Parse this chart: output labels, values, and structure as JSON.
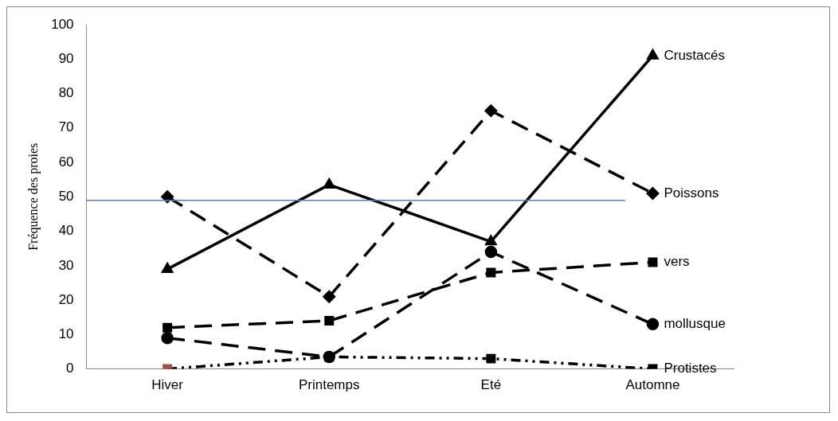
{
  "chart_data": {
    "type": "line",
    "ylabel": "Fréquence des proies",
    "categories": [
      "Hiver",
      "Printemps",
      "Eté",
      "Automne"
    ],
    "ylim": [
      0,
      100
    ],
    "yticks": [
      0,
      10,
      20,
      30,
      40,
      50,
      60,
      70,
      80,
      90,
      100
    ],
    "grid": false,
    "legend": "right",
    "series": [
      {
        "name": "Crustacés",
        "color": "#000000",
        "marker": "triangle",
        "line_style": "solid",
        "values": [
          29,
          53.5,
          37,
          91
        ]
      },
      {
        "name": "Poissons",
        "color": "#000000",
        "marker": "diamond",
        "line_style": "dashed",
        "values": [
          50,
          21,
          75,
          51
        ]
      },
      {
        "name": "vers",
        "color": "#000000",
        "marker": "square",
        "line_style": "dashed",
        "values": [
          12,
          14,
          28,
          31
        ]
      },
      {
        "name": "mollusque",
        "color": "#000000",
        "marker": "circle",
        "line_style": "dashed",
        "values": [
          9,
          3.5,
          34,
          13
        ]
      },
      {
        "name": "Protistes",
        "color": "#000000",
        "colors": [
          "#a05050",
          "#000000",
          "#000000",
          "#000000"
        ],
        "marker": "square",
        "line_style": "dotted",
        "values": [
          0,
          3.5,
          3,
          0
        ]
      }
    ],
    "ref_lines": [
      {
        "axis": "y",
        "value": 49,
        "color": "#4f81bd"
      }
    ]
  }
}
